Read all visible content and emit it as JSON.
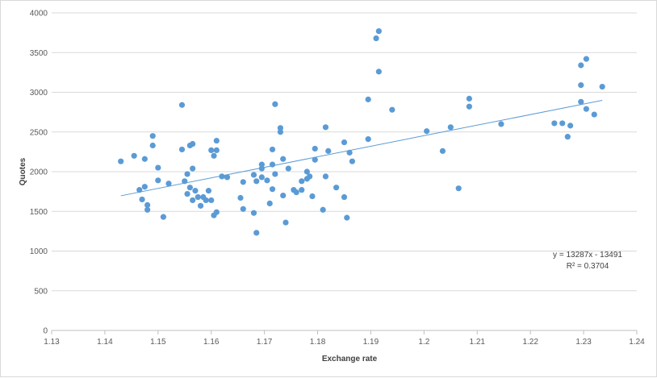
{
  "chart_data": {
    "type": "scatter",
    "title": "",
    "xlabel": "Exchange rate",
    "ylabel": "Quotes",
    "xlim": [
      1.13,
      1.24
    ],
    "ylim": [
      0,
      4000
    ],
    "x_ticks": [
      1.13,
      1.14,
      1.15,
      1.16,
      1.17,
      1.18,
      1.19,
      1.2,
      1.21,
      1.22,
      1.23,
      1.24
    ],
    "x_tick_labels": [
      "1.13",
      "1.14",
      "1.15",
      "1.16",
      "1.17",
      "1.18",
      "1.19",
      "1.2",
      "1.21",
      "1.22",
      "1.23",
      "1.24"
    ],
    "y_ticks": [
      0,
      500,
      1000,
      1500,
      2000,
      2500,
      3000,
      3500,
      4000
    ],
    "y_tick_labels": [
      "0",
      "500",
      "1000",
      "1500",
      "2000",
      "2500",
      "3000",
      "3500",
      "4000"
    ],
    "grid": "horizontal",
    "marker_color": "#5b9bd5",
    "trendline_color": "#5b9bd5",
    "trendline": {
      "slope": 13287,
      "intercept": -13491,
      "x_range": [
        1.143,
        1.2335
      ],
      "equation": "y = 13287x - 13491",
      "r_squared": "R² = 0.3704"
    },
    "points": [
      [
        1.143,
        2130
      ],
      [
        1.1455,
        2200
      ],
      [
        1.1465,
        1770
      ],
      [
        1.147,
        1650
      ],
      [
        1.1475,
        1810
      ],
      [
        1.1475,
        2160
      ],
      [
        1.148,
        1580
      ],
      [
        1.148,
        1520
      ],
      [
        1.149,
        2450
      ],
      [
        1.149,
        2330
      ],
      [
        1.15,
        2050
      ],
      [
        1.15,
        1890
      ],
      [
        1.151,
        1430
      ],
      [
        1.152,
        1850
      ],
      [
        1.1545,
        2840
      ],
      [
        1.1545,
        2280
      ],
      [
        1.155,
        1880
      ],
      [
        1.1555,
        1970
      ],
      [
        1.1555,
        1720
      ],
      [
        1.156,
        2330
      ],
      [
        1.156,
        1800
      ],
      [
        1.1565,
        2350
      ],
      [
        1.1565,
        2040
      ],
      [
        1.1565,
        1640
      ],
      [
        1.157,
        1760
      ],
      [
        1.1575,
        1680
      ],
      [
        1.158,
        1570
      ],
      [
        1.1585,
        1680
      ],
      [
        1.159,
        1640
      ],
      [
        1.1595,
        1760
      ],
      [
        1.16,
        1640
      ],
      [
        1.16,
        2270
      ],
      [
        1.1605,
        2200
      ],
      [
        1.1605,
        1450
      ],
      [
        1.161,
        2270
      ],
      [
        1.161,
        2390
      ],
      [
        1.161,
        1490
      ],
      [
        1.162,
        1940
      ],
      [
        1.163,
        1930
      ],
      [
        1.1655,
        1670
      ],
      [
        1.166,
        1530
      ],
      [
        1.166,
        1870
      ],
      [
        1.168,
        1480
      ],
      [
        1.168,
        1960
      ],
      [
        1.1685,
        1880
      ],
      [
        1.1685,
        1230
      ],
      [
        1.1695,
        2090
      ],
      [
        1.1695,
        2040
      ],
      [
        1.1695,
        1930
      ],
      [
        1.1705,
        1890
      ],
      [
        1.171,
        1600
      ],
      [
        1.1715,
        2280
      ],
      [
        1.1715,
        2090
      ],
      [
        1.1715,
        1780
      ],
      [
        1.172,
        2850
      ],
      [
        1.172,
        1970
      ],
      [
        1.173,
        2550
      ],
      [
        1.173,
        2500
      ],
      [
        1.1735,
        2160
      ],
      [
        1.1735,
        1700
      ],
      [
        1.174,
        1360
      ],
      [
        1.1745,
        2040
      ],
      [
        1.1755,
        1770
      ],
      [
        1.176,
        1740
      ],
      [
        1.177,
        1770
      ],
      [
        1.177,
        1880
      ],
      [
        1.178,
        1910
      ],
      [
        1.178,
        2000
      ],
      [
        1.1785,
        1940
      ],
      [
        1.179,
        1690
      ],
      [
        1.1795,
        2290
      ],
      [
        1.1795,
        2150
      ],
      [
        1.181,
        1520
      ],
      [
        1.1815,
        2560
      ],
      [
        1.1815,
        1940
      ],
      [
        1.182,
        2260
      ],
      [
        1.1835,
        1800
      ],
      [
        1.185,
        2370
      ],
      [
        1.185,
        1680
      ],
      [
        1.1855,
        1420
      ],
      [
        1.186,
        2240
      ],
      [
        1.1865,
        2130
      ],
      [
        1.1895,
        2910
      ],
      [
        1.1895,
        2410
      ],
      [
        1.191,
        3680
      ],
      [
        1.1915,
        3770
      ],
      [
        1.1915,
        3260
      ],
      [
        1.194,
        2780
      ],
      [
        1.2005,
        2510
      ],
      [
        1.2035,
        2260
      ],
      [
        1.205,
        2560
      ],
      [
        1.2065,
        1790
      ],
      [
        1.2085,
        2920
      ],
      [
        1.2085,
        2820
      ],
      [
        1.2145,
        2600
      ],
      [
        1.2245,
        2610
      ],
      [
        1.226,
        2610
      ],
      [
        1.227,
        2440
      ],
      [
        1.2275,
        2580
      ],
      [
        1.2295,
        3340
      ],
      [
        1.2295,
        3090
      ],
      [
        1.2295,
        2880
      ],
      [
        1.2305,
        3420
      ],
      [
        1.2305,
        2790
      ],
      [
        1.232,
        2720
      ],
      [
        1.2335,
        3070
      ]
    ]
  }
}
